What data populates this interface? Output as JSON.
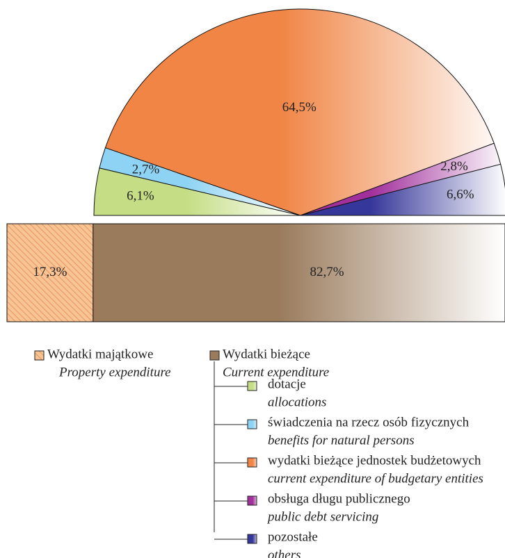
{
  "chart_data": [
    {
      "type": "bar",
      "categories": [
        "Wydatki majątkowe",
        "Wydatki bieżące"
      ],
      "categories_en": [
        "Property expenditure",
        "Current expenditure"
      ],
      "values": [
        17.3,
        82.7
      ],
      "value_labels": [
        "17,3%",
        "82,7%"
      ],
      "colors": [
        "#f5b37c",
        "#9a7b5c"
      ]
    },
    {
      "type": "pie",
      "categories": [
        "dotacje",
        "świadczenia na rzecz osób fizycznych",
        "wydatki bieżące jednostek budżetowych",
        "obsługa długu publicznego",
        "pozostałe"
      ],
      "categories_en": [
        "allocations",
        "benefits for natural persons",
        "current expenditure of budgetary entities",
        "public debt servicing",
        "others"
      ],
      "values": [
        6.1,
        2.7,
        64.5,
        2.8,
        6.6
      ],
      "value_labels": [
        "6,1%",
        "2,7%",
        "64,5%",
        "2,8%",
        "6,6%"
      ],
      "colors": [
        "#c5de85",
        "#8ed3f3",
        "#f08545",
        "#a12f9c",
        "#36379a"
      ]
    }
  ]
}
